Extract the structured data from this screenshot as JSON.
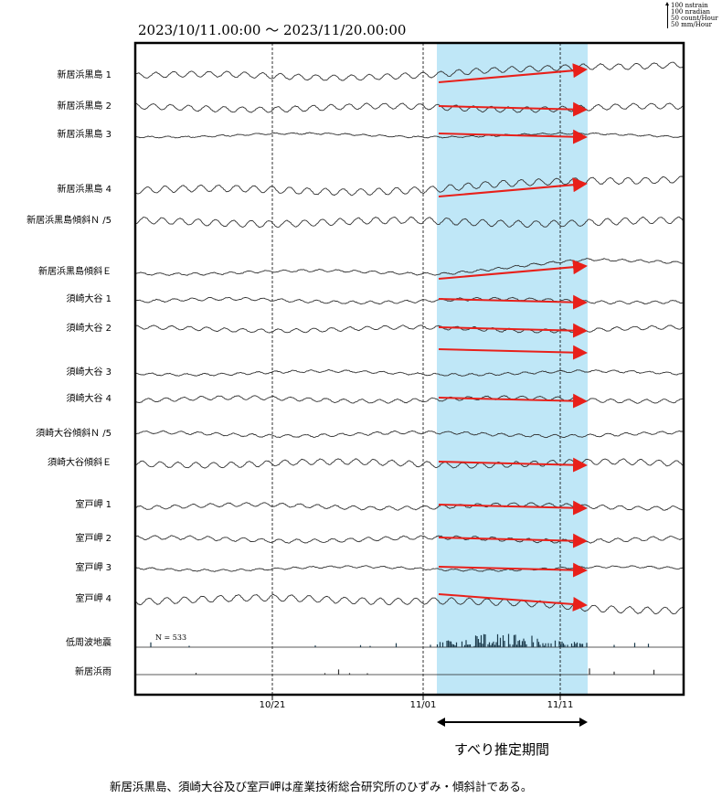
{
  "chart_data": {
    "type": "line",
    "title": "2023/10/11.00:00 ～ 2023/11/20.00:00",
    "x_range": [
      "2023-10-11T00:00",
      "2023-11-20T00:00"
    ],
    "x_ticks": [
      {
        "date": "2023-10-21",
        "label": "10/21"
      },
      {
        "date": "2023-11-01",
        "label": "11/01"
      },
      {
        "date": "2023-11-11",
        "label": "11/11"
      }
    ],
    "scale_legend": [
      "100 nstrain",
      "100 nradian",
      "50 count/Hour",
      "50 mm/Hour"
    ],
    "highlight_period": {
      "start": "2023-11-02",
      "end": "2023-11-13",
      "label": "すべり推定期間",
      "color": "#bfe7f7"
    },
    "arrow_color": "#e8201a",
    "series": [
      {
        "name": "新居浜黒島 1",
        "trend": "up"
      },
      {
        "name": "新居浜黒島 2",
        "trend": "flat"
      },
      {
        "name": "新居浜黒島 3",
        "trend": "flat"
      },
      {
        "name": "新居浜黒島 4",
        "trend": "up"
      },
      {
        "name": "新居浜黒島傾斜Ｎ /5",
        "trend": "flat"
      },
      {
        "name": "新居浜黒島傾斜Ｅ",
        "trend": "up"
      },
      {
        "name": "須崎大谷 1",
        "trend": "flat"
      },
      {
        "name": "須崎大谷 2",
        "trend": "flat"
      },
      {
        "name": "須崎大谷 3",
        "trend": "flat"
      },
      {
        "name": "須崎大谷 4",
        "trend": "flat"
      },
      {
        "name": "須崎大谷傾斜Ｎ /5",
        "trend": "flat"
      },
      {
        "name": "須崎大谷傾斜Ｅ",
        "trend": "flat"
      },
      {
        "name": "室戸岬 1",
        "trend": "flat"
      },
      {
        "name": "室戸岬 2",
        "trend": "flat"
      },
      {
        "name": "室戸岬 3",
        "trend": "flat"
      },
      {
        "name": "室戸岬 4",
        "trend": "down"
      },
      {
        "name": "低周波地震",
        "kind": "count",
        "annotation": "N =   533"
      },
      {
        "name": "新居浜雨",
        "kind": "rain"
      }
    ],
    "grid": "dashed vertical lines at 10/21, 11/01, 11/11"
  },
  "footnote": "新居浜黒島、須崎大谷及び室戸岬は産業技術総合研究所のひずみ・傾斜計である。"
}
